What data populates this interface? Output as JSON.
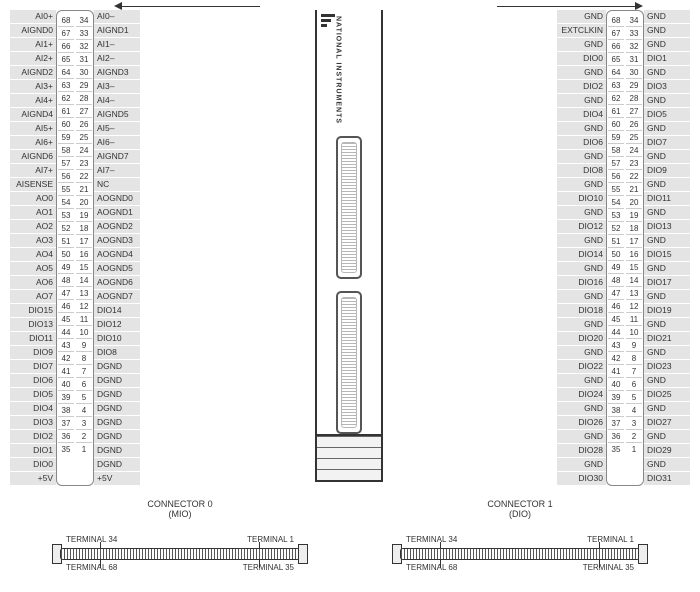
{
  "device": {
    "brand": "NATIONAL INSTRUMENTS"
  },
  "connector0": {
    "title": "CONNECTOR 0",
    "subtitle": "(MIO)",
    "terminals": {
      "tl": "TERMINAL 34",
      "tr": "TERMINAL 1",
      "bl": "TERMINAL 68",
      "br": "TERMINAL 35"
    },
    "rows": [
      {
        "l": "AI0+",
        "a": 68,
        "b": 34,
        "r": "AI0–"
      },
      {
        "l": "AIGND0",
        "a": 67,
        "b": 33,
        "r": "AIGND1"
      },
      {
        "l": "AI1+",
        "a": 66,
        "b": 32,
        "r": "AI1–"
      },
      {
        "l": "AI2+",
        "a": 65,
        "b": 31,
        "r": "AI2–"
      },
      {
        "l": "AIGND2",
        "a": 64,
        "b": 30,
        "r": "AIGND3"
      },
      {
        "l": "AI3+",
        "a": 63,
        "b": 29,
        "r": "AI3–"
      },
      {
        "l": "AI4+",
        "a": 62,
        "b": 28,
        "r": "AI4–"
      },
      {
        "l": "AIGND4",
        "a": 61,
        "b": 27,
        "r": "AIGND5"
      },
      {
        "l": "AI5+",
        "a": 60,
        "b": 26,
        "r": "AI5–"
      },
      {
        "l": "AI6+",
        "a": 59,
        "b": 25,
        "r": "AI6–"
      },
      {
        "l": "AIGND6",
        "a": 58,
        "b": 24,
        "r": "AIGND7"
      },
      {
        "l": "AI7+",
        "a": 57,
        "b": 23,
        "r": "AI7–"
      },
      {
        "l": "AISENSE",
        "a": 56,
        "b": 22,
        "r": "NC"
      },
      {
        "l": "AO0",
        "a": 55,
        "b": 21,
        "r": "AOGND0"
      },
      {
        "l": "AO1",
        "a": 54,
        "b": 20,
        "r": "AOGND1"
      },
      {
        "l": "AO2",
        "a": 53,
        "b": 19,
        "r": "AOGND2"
      },
      {
        "l": "AO3",
        "a": 52,
        "b": 18,
        "r": "AOGND3"
      },
      {
        "l": "AO4",
        "a": 51,
        "b": 17,
        "r": "AOGND4"
      },
      {
        "l": "AO5",
        "a": 50,
        "b": 16,
        "r": "AOGND5"
      },
      {
        "l": "AO6",
        "a": 49,
        "b": 15,
        "r": "AOGND6"
      },
      {
        "l": "AO7",
        "a": 48,
        "b": 14,
        "r": "AOGND7"
      },
      {
        "l": "DIO15",
        "a": 47,
        "b": 13,
        "r": "DIO14"
      },
      {
        "l": "DIO13",
        "a": 46,
        "b": 12,
        "r": "DIO12"
      },
      {
        "l": "DIO11",
        "a": 45,
        "b": 11,
        "r": "DIO10"
      },
      {
        "l": "DIO9",
        "a": 44,
        "b": 10,
        "r": "DIO8"
      },
      {
        "l": "DIO7",
        "a": 43,
        "b": 9,
        "r": "DGND"
      },
      {
        "l": "DIO6",
        "a": 42,
        "b": 8,
        "r": "DGND"
      },
      {
        "l": "DIO5",
        "a": 41,
        "b": 7,
        "r": "DGND"
      },
      {
        "l": "DIO4",
        "a": 40,
        "b": 6,
        "r": "DGND"
      },
      {
        "l": "DIO3",
        "a": 39,
        "b": 5,
        "r": "DGND"
      },
      {
        "l": "DIO2",
        "a": 38,
        "b": 4,
        "r": "DGND"
      },
      {
        "l": "DIO1",
        "a": 37,
        "b": 3,
        "r": "DGND"
      },
      {
        "l": "DIO0",
        "a": 36,
        "b": 2,
        "r": "DGND"
      },
      {
        "l": "+5V",
        "a": 35,
        "b": 1,
        "r": "+5V"
      }
    ]
  },
  "connector1": {
    "title": "CONNECTOR 1",
    "subtitle": "(DIO)",
    "terminals": {
      "tl": "TERMINAL 34",
      "tr": "TERMINAL 1",
      "bl": "TERMINAL 68",
      "br": "TERMINAL 35"
    },
    "rows": [
      {
        "l": "GND",
        "a": 68,
        "b": 34,
        "r": "GND"
      },
      {
        "l": "EXTCLKIN",
        "a": 67,
        "b": 33,
        "r": "GND"
      },
      {
        "l": "GND",
        "a": 66,
        "b": 32,
        "r": "GND"
      },
      {
        "l": "DIO0",
        "a": 65,
        "b": 31,
        "r": "DIO1"
      },
      {
        "l": "GND",
        "a": 64,
        "b": 30,
        "r": "GND"
      },
      {
        "l": "DIO2",
        "a": 63,
        "b": 29,
        "r": "DIO3"
      },
      {
        "l": "GND",
        "a": 62,
        "b": 28,
        "r": "GND"
      },
      {
        "l": "DIO4",
        "a": 61,
        "b": 27,
        "r": "DIO5"
      },
      {
        "l": "GND",
        "a": 60,
        "b": 26,
        "r": "GND"
      },
      {
        "l": "DIO6",
        "a": 59,
        "b": 25,
        "r": "DIO7"
      },
      {
        "l": "GND",
        "a": 58,
        "b": 24,
        "r": "GND"
      },
      {
        "l": "DIO8",
        "a": 57,
        "b": 23,
        "r": "DIO9"
      },
      {
        "l": "GND",
        "a": 56,
        "b": 22,
        "r": "GND"
      },
      {
        "l": "DIO10",
        "a": 55,
        "b": 21,
        "r": "DIO11"
      },
      {
        "l": "GND",
        "a": 54,
        "b": 20,
        "r": "GND"
      },
      {
        "l": "DIO12",
        "a": 53,
        "b": 19,
        "r": "DIO13"
      },
      {
        "l": "GND",
        "a": 52,
        "b": 18,
        "r": "GND"
      },
      {
        "l": "DIO14",
        "a": 51,
        "b": 17,
        "r": "DIO15"
      },
      {
        "l": "GND",
        "a": 50,
        "b": 16,
        "r": "GND"
      },
      {
        "l": "DIO16",
        "a": 49,
        "b": 15,
        "r": "DIO17"
      },
      {
        "l": "GND",
        "a": 48,
        "b": 14,
        "r": "GND"
      },
      {
        "l": "DIO18",
        "a": 47,
        "b": 13,
        "r": "DIO19"
      },
      {
        "l": "GND",
        "a": 46,
        "b": 12,
        "r": "GND"
      },
      {
        "l": "DIO20",
        "a": 45,
        "b": 11,
        "r": "DIO21"
      },
      {
        "l": "GND",
        "a": 44,
        "b": 10,
        "r": "GND"
      },
      {
        "l": "DIO22",
        "a": 43,
        "b": 9,
        "r": "DIO23"
      },
      {
        "l": "GND",
        "a": 42,
        "b": 8,
        "r": "GND"
      },
      {
        "l": "DIO24",
        "a": 41,
        "b": 7,
        "r": "DIO25"
      },
      {
        "l": "GND",
        "a": 40,
        "b": 6,
        "r": "GND"
      },
      {
        "l": "DIO26",
        "a": 39,
        "b": 5,
        "r": "DIO27"
      },
      {
        "l": "GND",
        "a": 38,
        "b": 4,
        "r": "GND"
      },
      {
        "l": "DIO28",
        "a": 37,
        "b": 3,
        "r": "DIO29"
      },
      {
        "l": "GND",
        "a": 36,
        "b": 2,
        "r": "GND"
      },
      {
        "l": "DIO30",
        "a": 35,
        "b": 1,
        "r": "DIO31"
      }
    ]
  },
  "style": {
    "label_bg": "#e4e4e4",
    "border": "#888",
    "text": "#333"
  }
}
